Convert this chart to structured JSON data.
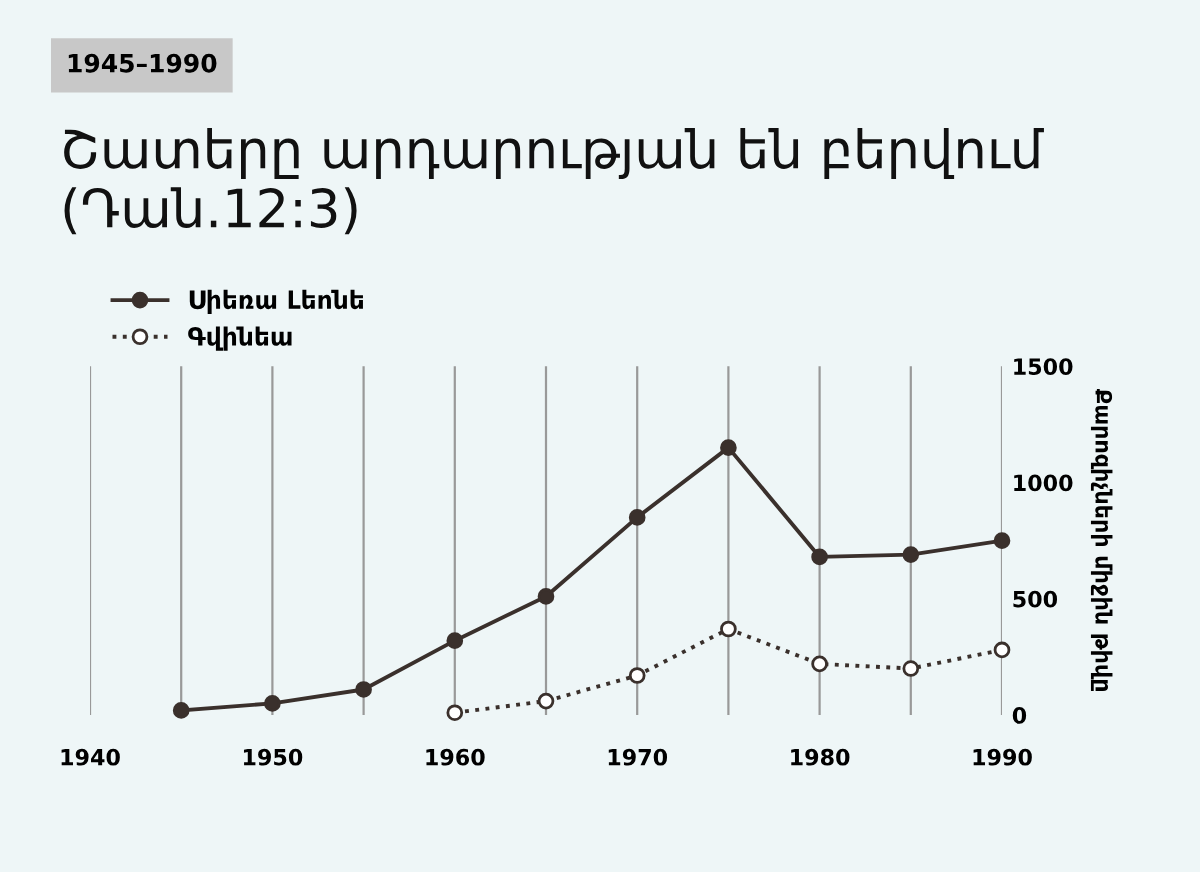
{
  "chart_data": {
    "type": "line",
    "subtitle": "1945–1990",
    "title": "Շատերը արդարության են բերվում (Դան.12:3)",
    "ylabel": "Քարոզիչների միջին թիվը",
    "x": [
      1945,
      1950,
      1955,
      1960,
      1965,
      1970,
      1975,
      1980,
      1985,
      1990
    ],
    "series": [
      {
        "name": "Սիեռա Լեոնե",
        "color": "#3a302c",
        "marker": "circle",
        "line_style": "solid",
        "values": [
          20,
          50,
          110,
          320,
          510,
          850,
          1150,
          680,
          690,
          750
        ]
      },
      {
        "name": "Գվինեա",
        "color": "#3a302c",
        "marker": "circle",
        "line_style": "dotted",
        "values": [
          null,
          null,
          null,
          10,
          60,
          170,
          370,
          220,
          200,
          280
        ]
      }
    ],
    "xlim": [
      1940,
      1990
    ],
    "ylim": [
      0,
      1500
    ],
    "xticks": [
      1940,
      {
        "value": 1945,
        "label": null
      },
      1950,
      {
        "value": 1955,
        "label": null
      },
      1960,
      {
        "value": 1965,
        "label": null
      },
      1970,
      {
        "value": 1975,
        "label": null
      },
      1980,
      {
        "value": 1985,
        "label": null
      },
      1990
    ],
    "yticks": [
      0,
      500,
      1000,
      1500
    ],
    "grid": "x",
    "legend": "top left"
  }
}
